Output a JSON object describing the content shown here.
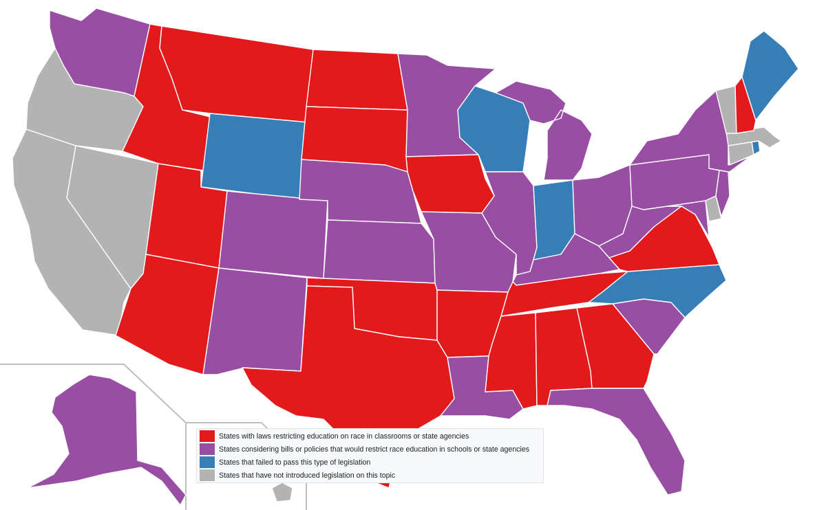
{
  "colors": {
    "laws": "#e31a1c",
    "considering": "#984ea3",
    "failed": "#377eb8",
    "none": "#b3b3b3",
    "border": "#ffffff"
  },
  "legend": {
    "items": [
      {
        "label": "States with laws restricting education on race in classrooms or state agencies",
        "color": "#e31a1c"
      },
      {
        "label": "States considering bills or policies that would restrict race education in schools or state agencies",
        "color": "#984ea3"
      },
      {
        "label": "States that failed to pass this type of legislation",
        "color": "#377eb8"
      },
      {
        "label": "States that have not introduced legislation on this topic",
        "color": "#b3b3b3"
      }
    ]
  },
  "states": {
    "washington": "considering",
    "oregon": "none",
    "california": "none",
    "nevada": "none",
    "idaho": "laws",
    "montana": "laws",
    "wyoming": "failed",
    "utah": "laws",
    "arizona": "laws",
    "colorado": "considering",
    "new_mexico": "considering",
    "north_dakota": "laws",
    "south_dakota": "laws",
    "nebraska": "considering",
    "kansas": "considering",
    "oklahoma": "laws",
    "texas": "laws",
    "minnesota": "considering",
    "iowa": "laws",
    "missouri": "considering",
    "arkansas": "laws",
    "louisiana": "considering",
    "wisconsin": "failed",
    "illinois": "considering",
    "michigan": "considering",
    "indiana": "failed",
    "ohio": "considering",
    "kentucky": "considering",
    "tennessee": "laws",
    "mississippi": "laws",
    "alabama": "laws",
    "georgia": "laws",
    "florida": "considering",
    "south_carolina": "considering",
    "north_carolina": "failed",
    "virginia": "laws",
    "west_virginia": "considering",
    "maryland": "considering",
    "delaware": "none",
    "pennsylvania": "considering",
    "new_jersey": "considering",
    "new_york": "considering",
    "connecticut": "none",
    "rhode_island": "failed",
    "massachusetts": "none",
    "vermont": "none",
    "new_hampshire": "laws",
    "maine": "failed",
    "alaska": "considering",
    "hawaii": "none"
  }
}
